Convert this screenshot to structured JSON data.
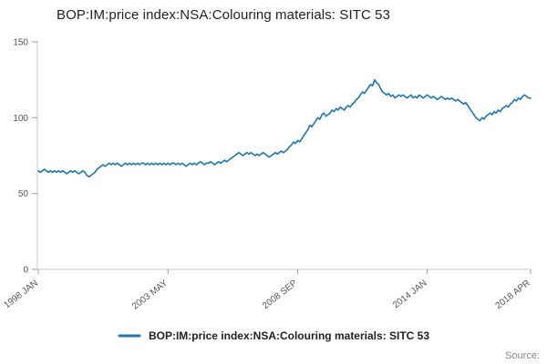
{
  "page": {
    "source_label": "Source:"
  },
  "chart_data": {
    "type": "line",
    "title": "BOP:IM:price index:NSA:Colouring materials: SITC 53",
    "xlabel": "",
    "ylabel": "",
    "ylim": [
      0,
      150
    ],
    "y_ticks": [
      0,
      50,
      100,
      150
    ],
    "grid": false,
    "legend_position": "bottom",
    "line_color": "#1f77b4",
    "axis_color": "#c8c8c8",
    "tick_color": "#999999",
    "tick_label_color": "#555555",
    "x_tick_labels": [
      "1998 JAN",
      "2003 MAY",
      "2008 SEP",
      "2014 JAN",
      "2018 APR"
    ],
    "x_tick_indices": [
      0,
      64,
      128,
      192,
      243
    ],
    "x_start": "1998 JAN",
    "x_end": "2018 APR",
    "frequency": "monthly",
    "series": [
      {
        "name": "BOP:IM:price index:NSA:Colouring materials: SITC 53",
        "values": [
          65,
          64,
          65,
          66,
          65,
          64,
          65,
          64,
          65,
          64,
          65,
          64,
          65,
          64,
          63,
          64,
          65,
          64,
          65,
          64,
          63,
          64,
          65,
          64,
          62,
          61,
          62,
          63,
          64,
          66,
          67,
          68,
          69,
          68,
          69,
          70,
          69,
          70,
          69,
          70,
          69,
          68,
          69,
          70,
          69,
          70,
          69,
          70,
          69,
          70,
          69,
          70,
          70,
          69,
          70,
          69,
          70,
          69,
          70,
          69,
          70,
          69,
          70,
          69,
          70,
          69,
          70,
          70,
          69,
          70,
          69,
          70,
          69,
          68,
          69,
          70,
          69,
          70,
          69,
          70,
          71,
          70,
          69,
          70,
          70,
          71,
          70,
          69,
          70,
          71,
          70,
          71,
          72,
          71,
          72,
          73,
          74,
          75,
          76,
          77,
          76,
          75,
          76,
          77,
          76,
          77,
          76,
          75,
          76,
          75,
          76,
          77,
          76,
          75,
          74,
          75,
          76,
          77,
          76,
          77,
          78,
          77,
          78,
          79,
          81,
          82,
          84,
          83,
          85,
          84,
          86,
          88,
          90,
          92,
          95,
          94,
          96,
          98,
          100,
          99,
          102,
          103,
          101,
          102,
          103,
          105,
          104,
          106,
          105,
          107,
          106,
          105,
          107,
          108,
          107,
          109,
          110,
          112,
          113,
          115,
          117,
          116,
          118,
          120,
          122,
          121,
          125,
          123,
          122,
          119,
          117,
          116,
          115,
          116,
          114,
          115,
          113,
          114,
          115,
          114,
          115,
          114,
          113,
          114,
          115,
          113,
          114,
          113,
          115,
          114,
          113,
          114,
          115,
          114,
          113,
          114,
          113,
          112,
          113,
          114,
          113,
          112,
          113,
          112,
          113,
          112,
          111,
          112,
          111,
          110,
          109,
          110,
          108,
          106,
          104,
          102,
          100,
          99,
          98,
          100,
          99,
          101,
          102,
          103,
          102,
          104,
          103,
          105,
          104,
          106,
          107,
          108,
          107,
          109,
          110,
          112,
          111,
          113,
          112,
          114,
          115,
          114,
          113,
          113
        ]
      }
    ]
  }
}
